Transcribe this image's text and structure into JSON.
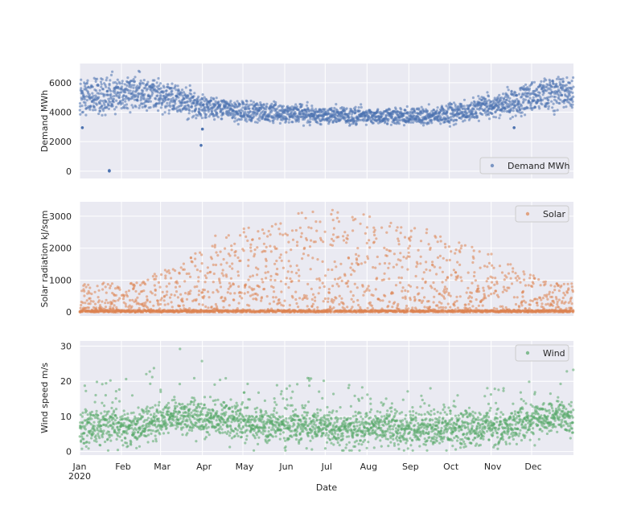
{
  "figure": {
    "xlabel": "Date",
    "year_label": "2020",
    "months": [
      "Jan",
      "Feb",
      "Mar",
      "Apr",
      "May",
      "Jun",
      "Jul",
      "Aug",
      "Sep",
      "Oct",
      "Nov",
      "Dec"
    ]
  },
  "colors": {
    "background": "#eaeaf2",
    "grid": "#ffffff",
    "legend_bg": "#eaeaf2",
    "legend_border": "#cccccc"
  },
  "chart_data": [
    {
      "type": "scatter",
      "series": [
        {
          "name": "Demand MWh",
          "color": "#4c72b0"
        }
      ],
      "ylabel": "Demand MWh",
      "ylim": [
        -500,
        7300
      ],
      "yticks": [
        0,
        2000,
        4000,
        6000
      ],
      "xlim": [
        "2020-01-01",
        "2020-12-31"
      ],
      "legend": "lower-right",
      "grid": true,
      "outliers": [
        {
          "x": "2020-01-23",
          "y": 0
        },
        {
          "x": "2020-01-23",
          "y": 40
        },
        {
          "x": "2020-03-31",
          "y": 1750
        },
        {
          "x": "2020-01-03",
          "y": 2950
        },
        {
          "x": "2020-11-18",
          "y": 2950
        },
        {
          "x": "2020-04-01",
          "y": 2850
        }
      ],
      "profile": {
        "description_of_shape": "seasonal envelope (monthly approx, MWh)",
        "base_by_month": [
          4800,
          5100,
          4500,
          4000,
          3800,
          3750,
          3600,
          3550,
          3600,
          3900,
          4500,
          5000
        ],
        "amplitude_by_month": [
          1400,
          1300,
          1200,
          900,
          800,
          700,
          700,
          650,
          700,
          800,
          1100,
          1300
        ]
      }
    },
    {
      "type": "scatter",
      "series": [
        {
          "name": "Solar",
          "color": "#dd8452"
        }
      ],
      "ylabel": "Solar radiation kJ/sqm",
      "ylim": [
        -120,
        3450
      ],
      "yticks": [
        0,
        1000,
        2000,
        3000
      ],
      "xlim": [
        "2020-01-01",
        "2020-12-31"
      ],
      "legend": "upper-right",
      "grid": true,
      "profile": {
        "peak_by_month": [
          900,
          1100,
          1500,
          2700,
          2600,
          3200,
          3300,
          2800,
          2600,
          2200,
          1500,
          900
        ]
      }
    },
    {
      "type": "scatter",
      "series": [
        {
          "name": "Wind",
          "color": "#55a868"
        }
      ],
      "ylabel": "Wind speed m/s",
      "ylim": [
        -1,
        31.5
      ],
      "yticks": [
        0,
        10,
        20,
        30
      ],
      "xlim": [
        "2020-01-01",
        "2020-12-31"
      ],
      "legend": "upper-right",
      "grid": true,
      "profile": {
        "mean_by_month": [
          7,
          7,
          10,
          9,
          7,
          7,
          6,
          7,
          6,
          7,
          7,
          10
        ],
        "max_by_month": [
          20,
          21,
          30,
          21,
          18,
          21,
          19,
          17,
          21,
          19,
          18,
          25
        ]
      }
    }
  ]
}
